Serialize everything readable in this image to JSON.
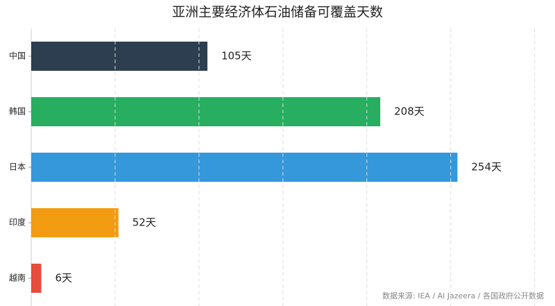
{
  "chart_data": {
    "type": "barh",
    "title": "亚洲主要经济体石油储备可覆盖天数",
    "categories": [
      "中国",
      "韩国",
      "日本",
      "印度",
      "越南"
    ],
    "values": [
      105,
      208,
      254,
      52,
      6
    ],
    "value_labels": [
      "105天",
      "208天",
      "254天",
      "52天",
      "6天"
    ],
    "colors": [
      "#2c3e50",
      "#27ae60",
      "#3498db",
      "#f39c12",
      "#e74c3c"
    ],
    "xlim": [
      0,
      308
    ],
    "xticks": [
      50,
      100,
      150,
      200,
      250,
      300
    ],
    "grid": true,
    "source": "数据来源: IEA / Al Jazeera / 各国政府公开数据"
  }
}
